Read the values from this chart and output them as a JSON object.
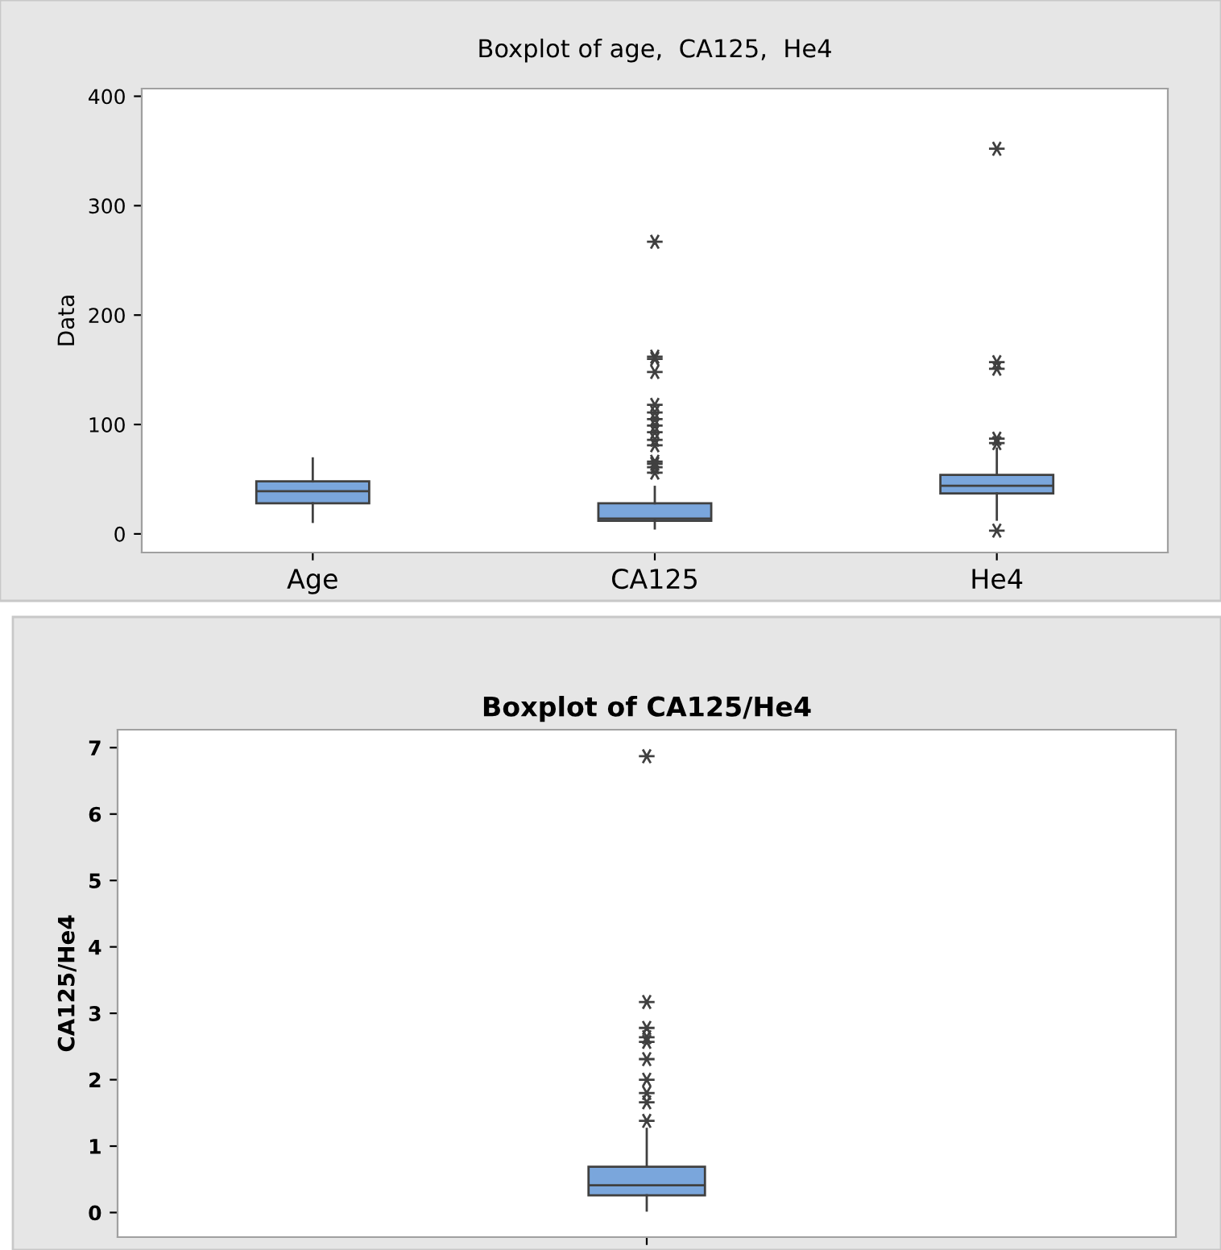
{
  "chart_data": [
    {
      "type": "box",
      "title": "Boxplot of age,  CA125,  He4",
      "ylabel": "Data",
      "categories": [
        "Age",
        "CA125",
        "He4"
      ],
      "ylim": [
        -17,
        407
      ],
      "yticks": [
        0,
        100,
        200,
        300,
        400
      ],
      "grid": false,
      "marker": "star",
      "color": "#7aa6dc",
      "boxes": [
        {
          "low": 11,
          "q1": 28,
          "median": 39,
          "q3": 48,
          "high": 69
        },
        {
          "low": 5,
          "q1": 12,
          "median": 14,
          "q3": 28,
          "high": 43,
          "outliers": [
            267,
            162,
            160,
            148,
            118,
            111,
            105,
            99,
            93,
            86,
            81,
            66,
            64,
            61,
            56
          ]
        },
        {
          "low": 13,
          "q1": 37,
          "median": 44,
          "q3": 54,
          "high": 78,
          "outliers": [
            352,
            157,
            151,
            87,
            83,
            3
          ]
        }
      ]
    },
    {
      "type": "box",
      "title": "Boxplot of CA125/He4",
      "ylabel": "CA125/He4",
      "categories": [
        null
      ],
      "ylim": [
        -0.37,
        7.27
      ],
      "yticks": [
        0,
        1,
        2,
        3,
        4,
        5,
        6,
        7
      ],
      "grid": false,
      "marker": "star",
      "color": "#7aa6dc",
      "boxes": [
        {
          "low": 0.03,
          "q1": 0.26,
          "median": 0.41,
          "q3": 0.69,
          "high": 1.26,
          "outliers": [
            6.87,
            3.17,
            2.78,
            2.64,
            2.57,
            2.31,
            2.0,
            1.8,
            1.66,
            1.38
          ]
        }
      ]
    }
  ]
}
